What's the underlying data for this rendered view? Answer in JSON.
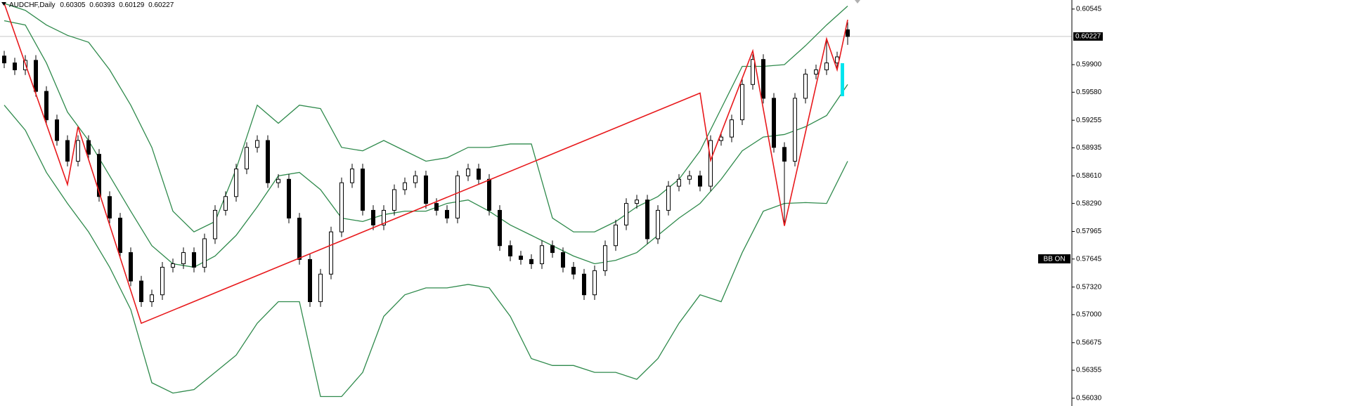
{
  "header": {
    "symbol": "AUDCHF,Daily"
  },
  "bb_label": "BB ON",
  "chart_data": {
    "type": "candlestick",
    "ylim": [
      0.5594,
      0.6065
    ],
    "yticks": [
      0.60545,
      {
        "value": 0.599,
        "label": "0.59900"
      },
      {
        "value": 0.5958,
        "label": "0.59580"
      },
      0.59255,
      0.58935,
      {
        "value": 0.5861,
        "label": "0.58610"
      },
      {
        "value": 0.5829,
        "label": "0.58290"
      },
      0.57965,
      0.57645,
      {
        "value": 0.5732,
        "label": "0.57320"
      },
      {
        "value": 0.57,
        "label": "0.57000"
      },
      0.56675,
      0.56355,
      {
        "value": 0.5603,
        "label": "0.56030"
      }
    ],
    "candles": {
      "up_color": "#ffffff",
      "down_color": "#000000",
      "outline_color": "#000000",
      "open": [
        0.6,
        0.5992,
        0.5984,
        0.5995,
        0.5959,
        0.5926,
        0.5902,
        0.5878,
        0.5902,
        0.5886,
        0.5837,
        0.5812,
        0.5772,
        0.5739,
        0.5715,
        0.5723,
        0.5755,
        0.5759,
        0.5772,
        0.5755,
        0.5788,
        0.5821,
        0.5837,
        0.5869,
        0.5894,
        0.5902,
        0.5853,
        0.5857,
        0.5812,
        0.5764,
        0.5715,
        0.5747,
        0.5796,
        0.5853,
        0.5869,
        0.5821,
        0.5804,
        0.5821,
        0.5845,
        0.5853,
        0.5861,
        0.5829,
        0.5821,
        0.5812,
        0.5861,
        0.5869,
        0.5857,
        0.5821,
        0.578,
        0.5768,
        0.5764,
        0.5759,
        0.578,
        0.5772,
        0.5755,
        0.5747,
        0.5723,
        0.5751,
        0.578,
        0.5804,
        0.5829,
        0.5833,
        0.5788,
        0.5821,
        0.5849,
        0.5857,
        0.5861,
        0.5849,
        0.5902,
        0.5906,
        0.5926,
        0.5967,
        0.5996,
        0.5951,
        0.5894,
        0.5878,
        0.5951,
        0.5979,
        0.5984,
        0.5992,
        0.60305
      ],
      "high": [
        0.6006,
        0.5998,
        0.6001,
        0.6001,
        0.5965,
        0.5932,
        0.5908,
        0.5908,
        0.5908,
        0.5892,
        0.5843,
        0.5818,
        0.5778,
        0.5745,
        0.5729,
        0.5761,
        0.5765,
        0.5778,
        0.5778,
        0.5794,
        0.5827,
        0.5843,
        0.5875,
        0.59,
        0.5908,
        0.5908,
        0.5863,
        0.5863,
        0.5818,
        0.577,
        0.5753,
        0.5802,
        0.5859,
        0.5875,
        0.5875,
        0.5827,
        0.5827,
        0.5851,
        0.5859,
        0.5867,
        0.5867,
        0.5835,
        0.5827,
        0.5867,
        0.5875,
        0.5875,
        0.5863,
        0.5827,
        0.5786,
        0.5774,
        0.577,
        0.5786,
        0.5786,
        0.5778,
        0.5761,
        0.5753,
        0.5757,
        0.5786,
        0.581,
        0.5835,
        0.5839,
        0.5839,
        0.5827,
        0.5855,
        0.5863,
        0.5867,
        0.5867,
        0.5908,
        0.5912,
        0.5932,
        0.5973,
        0.6002,
        0.6002,
        0.5957,
        0.59,
        0.5957,
        0.5985,
        0.599,
        0.602,
        0.6005,
        0.60393
      ],
      "low": [
        0.5986,
        0.5978,
        0.5978,
        0.5953,
        0.592,
        0.5896,
        0.5872,
        0.5872,
        0.588,
        0.5831,
        0.5806,
        0.5766,
        0.5733,
        0.5709,
        0.5709,
        0.5717,
        0.5749,
        0.5753,
        0.5749,
        0.5749,
        0.5782,
        0.5815,
        0.5831,
        0.5863,
        0.5888,
        0.5847,
        0.5847,
        0.5806,
        0.5758,
        0.5709,
        0.5709,
        0.5741,
        0.579,
        0.5847,
        0.5815,
        0.5798,
        0.5798,
        0.5815,
        0.5839,
        0.5847,
        0.5823,
        0.5815,
        0.5806,
        0.5806,
        0.5855,
        0.5851,
        0.5815,
        0.5774,
        0.5762,
        0.5758,
        0.5753,
        0.5753,
        0.5766,
        0.5749,
        0.5741,
        0.5717,
        0.5717,
        0.5745,
        0.5774,
        0.5798,
        0.5823,
        0.5782,
        0.5782,
        0.5815,
        0.5843,
        0.5851,
        0.5843,
        0.5843,
        0.5896,
        0.59,
        0.592,
        0.5961,
        0.5945,
        0.5888,
        0.5805,
        0.5872,
        0.5945,
        0.5973,
        0.5978,
        0.5986,
        0.60129
      ],
      "close": [
        0.5992,
        0.5984,
        0.5995,
        0.5959,
        0.5926,
        0.5902,
        0.5878,
        0.5902,
        0.5886,
        0.5837,
        0.5812,
        0.5772,
        0.5739,
        0.5715,
        0.5723,
        0.5755,
        0.5759,
        0.5772,
        0.5755,
        0.5788,
        0.5821,
        0.5837,
        0.5869,
        0.5894,
        0.5902,
        0.5853,
        0.5857,
        0.5812,
        0.5764,
        0.5715,
        0.5747,
        0.5796,
        0.5853,
        0.5869,
        0.5821,
        0.5804,
        0.5821,
        0.5845,
        0.5853,
        0.5861,
        0.5829,
        0.5821,
        0.5812,
        0.5861,
        0.5869,
        0.5857,
        0.5821,
        0.578,
        0.5768,
        0.5764,
        0.5759,
        0.578,
        0.5772,
        0.5755,
        0.5747,
        0.5723,
        0.5751,
        0.578,
        0.5804,
        0.5829,
        0.5833,
        0.5788,
        0.5821,
        0.5849,
        0.5857,
        0.5861,
        0.5849,
        0.5902,
        0.5906,
        0.5926,
        0.5967,
        0.5996,
        0.5951,
        0.5894,
        0.5878,
        0.5951,
        0.5979,
        0.5984,
        0.5992,
        0.5999,
        0.60227
      ]
    },
    "bands": {
      "color": "#2f8a4c",
      "upper": [
        0.6061,
        0.6053,
        0.6036,
        0.6024,
        0.6016,
        0.5984,
        0.5943,
        0.5894,
        0.582,
        0.5796,
        0.5808,
        0.5869,
        0.5943,
        0.5922,
        0.5943,
        0.5939,
        0.5894,
        0.589,
        0.5902,
        0.589,
        0.5878,
        0.5882,
        0.5894,
        0.5894,
        0.5898,
        0.5898,
        0.5812,
        0.5796,
        0.5796,
        0.5808,
        0.5825,
        0.5837,
        0.5857,
        0.589,
        0.5939,
        0.5988,
        0.5988,
        0.599,
        0.6012,
        0.6036,
        0.6058
      ],
      "middle": [
        0.6041,
        0.6036,
        0.5992,
        0.5935,
        0.5902,
        0.5861,
        0.582,
        0.578,
        0.5759,
        0.5755,
        0.5768,
        0.5792,
        0.5825,
        0.5861,
        0.5865,
        0.5845,
        0.5812,
        0.5808,
        0.5816,
        0.582,
        0.582,
        0.5829,
        0.5833,
        0.582,
        0.5804,
        0.5792,
        0.578,
        0.5768,
        0.5759,
        0.5763,
        0.5772,
        0.5792,
        0.5812,
        0.5829,
        0.5857,
        0.589,
        0.5906,
        0.5909,
        0.5918,
        0.5931,
        0.5967
      ],
      "lower": [
        0.5943,
        0.5914,
        0.5865,
        0.5829,
        0.5796,
        0.5755,
        0.5706,
        0.5621,
        0.5609,
        0.5613,
        0.5633,
        0.5653,
        0.569,
        0.5715,
        0.5715,
        0.5605,
        0.5605,
        0.5633,
        0.5698,
        0.5723,
        0.5731,
        0.5731,
        0.5735,
        0.5731,
        0.5698,
        0.5649,
        0.5641,
        0.5641,
        0.5633,
        0.5633,
        0.5625,
        0.5649,
        0.569,
        0.5723,
        0.5715,
        0.5772,
        0.582,
        0.5829,
        0.583,
        0.5829,
        0.5878
      ]
    },
    "zigzag": {
      "color": "#e8191c",
      "x": [
        0,
        6,
        7,
        13,
        66,
        67,
        71,
        74,
        78,
        79,
        80
      ],
      "values": [
        0.6061,
        0.5851,
        0.5918,
        0.569,
        0.5957,
        0.5879,
        0.6006,
        0.5803,
        0.602,
        0.5984,
        0.6042
      ]
    },
    "price_line_color": "#c8c8c8"
  }
}
